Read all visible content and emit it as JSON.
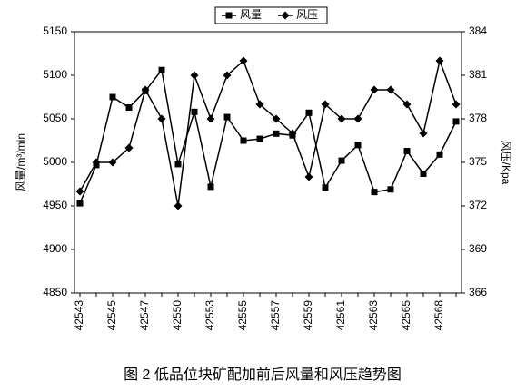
{
  "chart_data": {
    "type": "line",
    "title": "图 2 低品位块矿配加前后风量和风压趋势图",
    "ylabel": "风量/m³/min",
    "y2label": "风压/Kpa",
    "categories": [
      "42543",
      null,
      "42545",
      null,
      "42547",
      null,
      "42550",
      null,
      "42553",
      null,
      "42555",
      null,
      "42557",
      null,
      "42559",
      null,
      "42561",
      null,
      "42563",
      null,
      "42565",
      null,
      "42568",
      null
    ],
    "series": [
      {
        "name": "风量",
        "color": "#000000",
        "marker": "square",
        "axis": "y",
        "values": [
          4953,
          4997,
          5075,
          5063,
          5082,
          5106,
          4998,
          5058,
          4972,
          5052,
          5025,
          5027,
          5033,
          5031,
          5057,
          4971,
          5002,
          5020,
          4966,
          4969,
          5013,
          4987,
          5009,
          5047
        ]
      },
      {
        "name": "风压",
        "color": "#000000",
        "marker": "diamond",
        "axis": "y2",
        "values": [
          373,
          375,
          375,
          376,
          380,
          378,
          372,
          381,
          378,
          381,
          382,
          379,
          378,
          377,
          374,
          379,
          378,
          378,
          380,
          380,
          379,
          377,
          382,
          379
        ]
      }
    ],
    "ylim": [
      4850,
      5150
    ],
    "yticks": [
      4850,
      4900,
      4950,
      5000,
      5050,
      5100,
      5150
    ],
    "y2lim": [
      366,
      384
    ],
    "y2ticks": [
      366,
      369,
      372,
      375,
      378,
      381,
      384
    ],
    "grid": false,
    "legend": "top"
  }
}
